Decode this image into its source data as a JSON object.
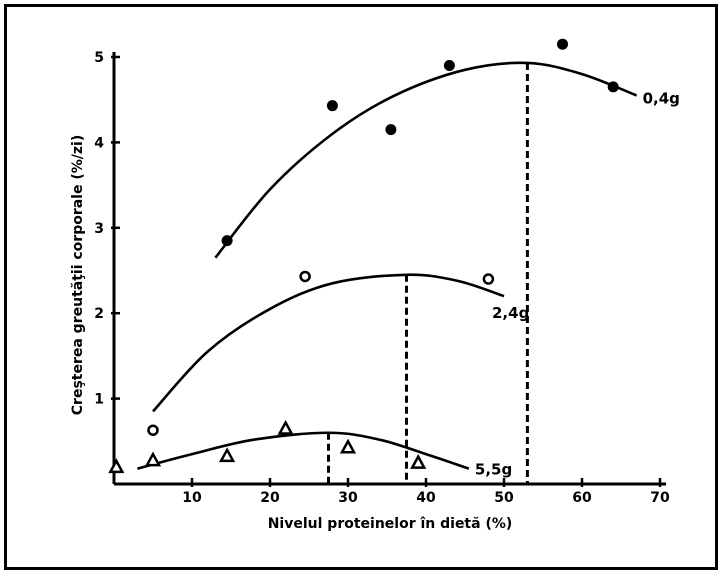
{
  "chart_data": {
    "type": "scatter",
    "xlabel": "Nivelul proteinelor în dietă (%)",
    "ylabel": "Creşterea greutăţii corporale (%/zi)",
    "xlim": [
      0,
      70
    ],
    "ylim": [
      0,
      5
    ],
    "xticks": [
      10,
      20,
      30,
      40,
      50,
      60,
      70
    ],
    "yticks": [
      1,
      2,
      3,
      4,
      5
    ],
    "grid": false,
    "series": [
      {
        "name": "0,4g",
        "marker": "filled-circle",
        "points": [
          [
            14.5,
            2.85
          ],
          [
            28,
            4.43
          ],
          [
            35.5,
            4.15
          ],
          [
            43,
            4.9
          ],
          [
            57.5,
            5.15
          ],
          [
            64,
            4.65
          ]
        ],
        "curve": [
          [
            13,
            2.65
          ],
          [
            20,
            3.45
          ],
          [
            28,
            4.1
          ],
          [
            36,
            4.55
          ],
          [
            45,
            4.85
          ],
          [
            53,
            4.93
          ],
          [
            60,
            4.8
          ],
          [
            67,
            4.55
          ]
        ],
        "optimum_x": 53
      },
      {
        "name": "2,4g",
        "marker": "open-circle",
        "points": [
          [
            24.5,
            2.43
          ],
          [
            48,
            2.4
          ],
          [
            5,
            0.63
          ]
        ],
        "curve": [
          [
            5,
            0.85
          ],
          [
            12,
            1.55
          ],
          [
            20,
            2.05
          ],
          [
            28,
            2.35
          ],
          [
            37.5,
            2.45
          ],
          [
            44,
            2.38
          ],
          [
            50,
            2.2
          ]
        ],
        "optimum_x": 37.5
      },
      {
        "name": "5,5g",
        "marker": "open-triangle",
        "points": [
          [
            5,
            0.28
          ],
          [
            14.5,
            0.33
          ],
          [
            22,
            0.65
          ],
          [
            30,
            0.43
          ],
          [
            39,
            0.25
          ],
          [
            0.3,
            0.2
          ]
        ],
        "curve": [
          [
            3,
            0.18
          ],
          [
            10,
            0.35
          ],
          [
            18,
            0.52
          ],
          [
            27.5,
            0.6
          ],
          [
            34,
            0.52
          ],
          [
            40,
            0.35
          ],
          [
            45.5,
            0.18
          ]
        ],
        "optimum_x": 27.5
      }
    ]
  }
}
